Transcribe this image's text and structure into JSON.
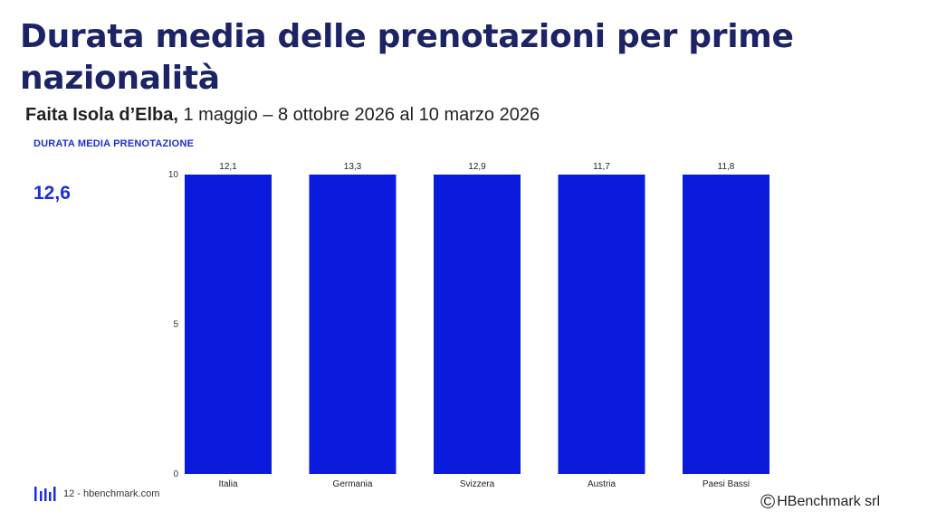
{
  "header": {
    "title": "Durata media delle prenotazioni per prime nazionalità",
    "subtitle_bold": "Faita Isola d’Elba,",
    "subtitle_rest": " 1 maggio – 8 ottobre 2026 al 10 marzo 2026"
  },
  "kpi": {
    "label": "DURATA MEDIA PRENOTAZIONE",
    "value": "12,6"
  },
  "chart_data": {
    "type": "bar",
    "title": "Durata media delle prenotazioni per prime nazionalità",
    "categories": [
      "Italia",
      "Germania",
      "Svizzera",
      "Austria",
      "Paesi Bassi"
    ],
    "values": [
      12.1,
      13.3,
      12.9,
      11.7,
      11.8
    ],
    "value_labels": [
      "12,1",
      "13,3",
      "12,9",
      "11,7",
      "11,8"
    ],
    "ylim": [
      0,
      10
    ],
    "yticks": [
      0,
      5,
      10
    ],
    "xlabel": "",
    "ylabel": "",
    "bar_color": "#0a1bde",
    "grid": false
  },
  "footer": {
    "page_text": "12 - hbenchmark.com",
    "copyright_symbol": "©",
    "copyright_text": "HBenchmark srl"
  },
  "colors": {
    "title": "#1d2466",
    "accent": "#1a2fd6",
    "bar": "#0a1bde"
  }
}
